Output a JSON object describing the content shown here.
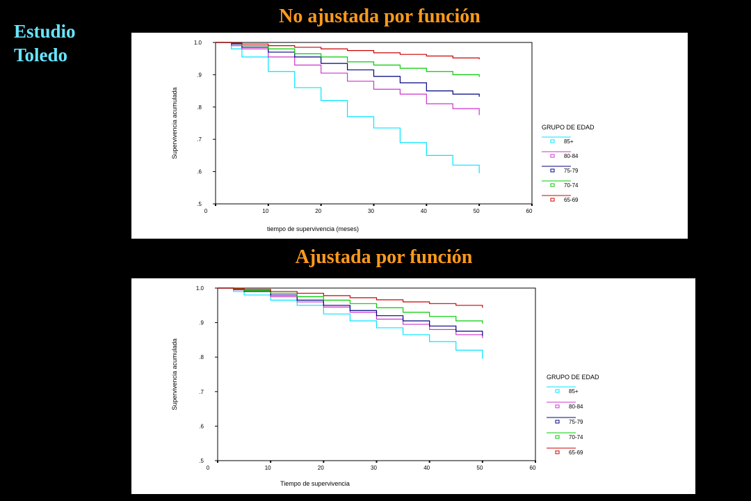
{
  "side_label": [
    "Estudio",
    "Toledo"
  ],
  "slide_titles": [
    "No ajustada por función",
    "Ajustada por función"
  ],
  "chart_data": [
    {
      "type": "line",
      "step": true,
      "title": "No ajustada por función",
      "xlabel": "tiempo de supervivencia (meses)",
      "ylabel": "Supervivencia acumulada",
      "xlim": [
        0,
        60
      ],
      "ylim": [
        0.5,
        1.0
      ],
      "xticks": [
        "0",
        "10",
        "20",
        "30",
        "40",
        "50",
        "60"
      ],
      "yticks": [
        ".5",
        ".6",
        ".7",
        ".8",
        ".9",
        "1.0"
      ],
      "legend_title": "GRUPO DE EDAD",
      "legend_position": "right",
      "grid": false,
      "series": [
        {
          "name": "85+",
          "color": "#00e5ff",
          "x": [
            0,
            3,
            5,
            10,
            15,
            20,
            25,
            30,
            35,
            40,
            45,
            50
          ],
          "y": [
            1.0,
            0.98,
            0.955,
            0.91,
            0.86,
            0.82,
            0.77,
            0.735,
            0.69,
            0.65,
            0.62,
            0.595
          ]
        },
        {
          "name": "80-84",
          "color": "#cc33cc",
          "x": [
            0,
            3,
            5,
            10,
            15,
            20,
            25,
            30,
            35,
            40,
            45,
            50
          ],
          "y": [
            1.0,
            0.99,
            0.98,
            0.955,
            0.93,
            0.905,
            0.88,
            0.855,
            0.84,
            0.81,
            0.795,
            0.775
          ]
        },
        {
          "name": "75-79",
          "color": "#000080",
          "x": [
            0,
            3,
            5,
            10,
            15,
            20,
            25,
            30,
            35,
            40,
            45,
            50
          ],
          "y": [
            1.0,
            0.995,
            0.985,
            0.97,
            0.955,
            0.935,
            0.915,
            0.895,
            0.875,
            0.85,
            0.84,
            0.832
          ]
        },
        {
          "name": "70-74",
          "color": "#00cc00",
          "x": [
            0,
            3,
            5,
            10,
            15,
            20,
            25,
            30,
            35,
            40,
            45,
            50
          ],
          "y": [
            1.0,
            0.997,
            0.99,
            0.98,
            0.965,
            0.955,
            0.94,
            0.93,
            0.92,
            0.91,
            0.9,
            0.893
          ]
        },
        {
          "name": "65-69",
          "color": "#cc0000",
          "x": [
            0,
            3,
            5,
            10,
            15,
            20,
            25,
            30,
            35,
            40,
            45,
            50
          ],
          "y": [
            1.0,
            0.998,
            0.995,
            0.99,
            0.985,
            0.98,
            0.975,
            0.968,
            0.963,
            0.958,
            0.952,
            0.948
          ]
        }
      ]
    },
    {
      "type": "line",
      "step": true,
      "title": "Ajustada por función",
      "xlabel": "Tiempo de supervivencia",
      "ylabel": "Supervivencia acumulada",
      "xlim": [
        0,
        60
      ],
      "ylim": [
        0.5,
        1.0
      ],
      "xticks": [
        "0",
        "10",
        "20",
        "30",
        "40",
        "50",
        "60"
      ],
      "yticks": [
        ".5",
        ".6",
        ".7",
        ".8",
        ".9",
        "1.0"
      ],
      "legend_title": "GRUPO DE EDAD",
      "legend_position": "right",
      "grid": false,
      "series": [
        {
          "name": "85+",
          "color": "#00e5ff",
          "x": [
            0,
            3,
            5,
            10,
            15,
            20,
            25,
            30,
            35,
            40,
            45,
            50
          ],
          "y": [
            1.0,
            0.99,
            0.98,
            0.965,
            0.95,
            0.925,
            0.905,
            0.885,
            0.865,
            0.845,
            0.82,
            0.795
          ]
        },
        {
          "name": "80-84",
          "color": "#cc33cc",
          "x": [
            0,
            3,
            5,
            10,
            15,
            20,
            25,
            30,
            35,
            40,
            45,
            50
          ],
          "y": [
            1.0,
            0.995,
            0.99,
            0.975,
            0.96,
            0.945,
            0.93,
            0.91,
            0.895,
            0.88,
            0.865,
            0.855
          ]
        },
        {
          "name": "75-79",
          "color": "#000080",
          "x": [
            0,
            3,
            5,
            10,
            15,
            20,
            25,
            30,
            35,
            40,
            45,
            50
          ],
          "y": [
            1.0,
            0.996,
            0.99,
            0.98,
            0.965,
            0.95,
            0.935,
            0.92,
            0.905,
            0.89,
            0.875,
            0.862
          ]
        },
        {
          "name": "70-74",
          "color": "#00cc00",
          "x": [
            0,
            3,
            5,
            10,
            15,
            20,
            25,
            30,
            35,
            40,
            45,
            50
          ],
          "y": [
            1.0,
            0.997,
            0.993,
            0.985,
            0.975,
            0.965,
            0.955,
            0.943,
            0.93,
            0.918,
            0.905,
            0.897
          ]
        },
        {
          "name": "65-69",
          "color": "#cc0000",
          "x": [
            0,
            3,
            5,
            10,
            15,
            20,
            25,
            30,
            35,
            40,
            45,
            50
          ],
          "y": [
            1.0,
            0.999,
            0.996,
            0.99,
            0.985,
            0.978,
            0.972,
            0.966,
            0.96,
            0.955,
            0.95,
            0.943
          ]
        }
      ]
    }
  ]
}
